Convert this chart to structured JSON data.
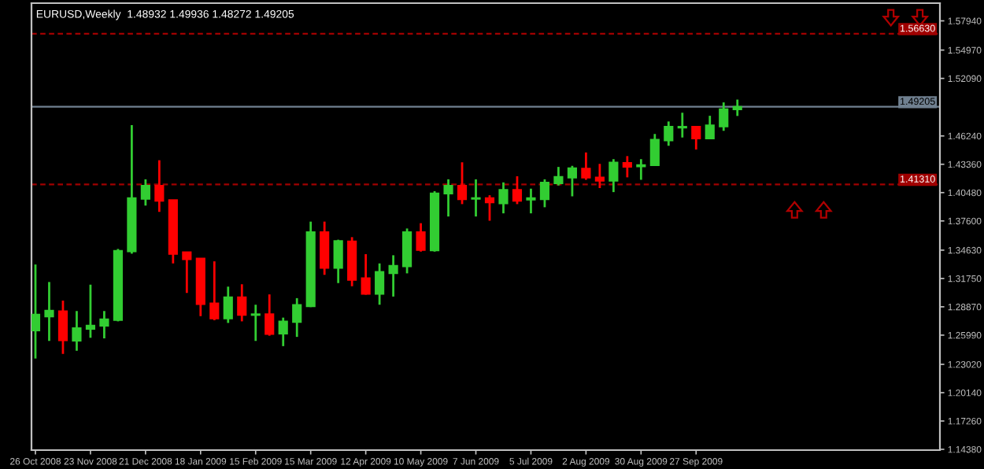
{
  "chart_data": {
    "type": "candlestick",
    "title": "EURUSD,Weekly  1.48932 1.49936 1.48272 1.49205",
    "x": [
      "2008-10-26",
      "2008-11-02",
      "2008-11-09",
      "2008-11-16",
      "2008-11-23",
      "2008-11-30",
      "2008-12-07",
      "2008-12-14",
      "2008-12-21",
      "2008-12-28",
      "2009-01-04",
      "2009-01-11",
      "2009-01-18",
      "2009-01-25",
      "2009-02-01",
      "2009-02-08",
      "2009-02-15",
      "2009-02-22",
      "2009-03-01",
      "2009-03-08",
      "2009-03-15",
      "2009-03-22",
      "2009-03-29",
      "2009-04-05",
      "2009-04-12",
      "2009-04-19",
      "2009-04-26",
      "2009-05-03",
      "2009-05-10",
      "2009-05-17",
      "2009-05-24",
      "2009-05-31",
      "2009-06-07",
      "2009-06-14",
      "2009-06-21",
      "2009-06-28",
      "2009-07-05",
      "2009-07-12",
      "2009-07-19",
      "2009-07-26",
      "2009-08-02",
      "2009-08-09",
      "2009-08-16",
      "2009-08-23",
      "2009-08-30",
      "2009-09-06",
      "2009-09-13",
      "2009-09-20",
      "2009-09-27",
      "2009-10-04",
      "2009-10-11",
      "2009-10-18"
    ],
    "ohlc": [
      [
        1.2645,
        1.3317,
        1.2361,
        1.2809
      ],
      [
        1.2786,
        1.3139,
        1.254,
        1.2849
      ],
      [
        1.2844,
        1.295,
        1.2408,
        1.2545
      ],
      [
        1.254,
        1.2844,
        1.244,
        1.2671
      ],
      [
        1.266,
        1.3112,
        1.2572,
        1.2698
      ],
      [
        1.2692,
        1.2844,
        1.2566,
        1.2761
      ],
      [
        1.275,
        1.3475,
        1.2739,
        1.3458
      ],
      [
        1.3448,
        1.4734,
        1.3427,
        1.3994
      ],
      [
        1.3983,
        1.4183,
        1.3916,
        1.412
      ],
      [
        1.412,
        1.4377,
        1.3852,
        1.3963
      ],
      [
        1.3974,
        1.3974,
        1.3328,
        1.3422
      ],
      [
        1.3443,
        1.3443,
        1.3028,
        1.3369
      ],
      [
        1.3379,
        1.3379,
        1.2792,
        1.2912
      ],
      [
        1.2923,
        1.3349,
        1.275,
        1.2766
      ],
      [
        1.2766,
        1.3092,
        1.2723,
        1.2986
      ],
      [
        1.2986,
        1.3116,
        1.2739,
        1.2802
      ],
      [
        1.2802,
        1.2908,
        1.254,
        1.2813
      ],
      [
        1.2813,
        1.3013,
        1.2593,
        1.2608
      ],
      [
        1.2613,
        1.2777,
        1.2487,
        1.2739
      ],
      [
        1.273,
        1.2975,
        1.2581,
        1.2908
      ],
      [
        1.2891,
        1.3753,
        1.2884,
        1.3647
      ],
      [
        1.3647,
        1.3753,
        1.3212,
        1.3281
      ],
      [
        1.3281,
        1.3569,
        1.3128,
        1.3557
      ],
      [
        1.3553,
        1.3595,
        1.3096,
        1.3159
      ],
      [
        1.318,
        1.3422,
        1.301,
        1.3017
      ],
      [
        1.3017,
        1.3328,
        1.2908,
        1.3243
      ],
      [
        1.3227,
        1.3411,
        1.2991,
        1.3306
      ],
      [
        1.3296,
        1.3683,
        1.3227,
        1.3647
      ],
      [
        1.3647,
        1.3737,
        1.3448,
        1.3463
      ],
      [
        1.3458,
        1.4062,
        1.3448,
        1.4041
      ],
      [
        1.4036,
        1.4183,
        1.3805,
        1.412
      ],
      [
        1.412,
        1.4356,
        1.3931,
        1.3978
      ],
      [
        1.3983,
        1.4183,
        1.3805,
        1.3994
      ],
      [
        1.3994,
        1.4021,
        1.3762,
        1.3947
      ],
      [
        1.3936,
        1.4152,
        1.3837,
        1.4077
      ],
      [
        1.4077,
        1.4214,
        1.3931,
        1.3963
      ],
      [
        1.3974,
        1.4088,
        1.3837,
        1.3994
      ],
      [
        1.3978,
        1.4183,
        1.3899,
        1.4152
      ],
      [
        1.414,
        1.4309,
        1.412,
        1.421
      ],
      [
        1.4199,
        1.432,
        1.401,
        1.4298
      ],
      [
        1.4293,
        1.4456,
        1.4178,
        1.4199
      ],
      [
        1.4203,
        1.434,
        1.4094,
        1.4167
      ],
      [
        1.4167,
        1.4388,
        1.4053,
        1.4356
      ],
      [
        1.4351,
        1.4419,
        1.4203,
        1.4309
      ],
      [
        1.4313,
        1.4388,
        1.4178,
        1.433
      ],
      [
        1.4325,
        1.4644,
        1.4318,
        1.4588
      ],
      [
        1.4576,
        1.4771,
        1.4524,
        1.4719
      ],
      [
        1.4707,
        1.486,
        1.4608,
        1.4719
      ],
      [
        1.4719,
        1.4726,
        1.4486,
        1.4597
      ],
      [
        1.4597,
        1.4829,
        1.459,
        1.4734
      ],
      [
        1.4719,
        1.4965,
        1.4676,
        1.4897
      ],
      [
        1.48932,
        1.49936,
        1.48272,
        1.49205
      ]
    ],
    "colors": [
      "#32cd32",
      "#32cd32",
      "#ff0000",
      "#32cd32",
      "#32cd32",
      "#32cd32",
      "#32cd32",
      "#32cd32",
      "#32cd32",
      "#ff0000",
      "#ff0000",
      "#ff0000",
      "#ff0000",
      "#ff0000",
      "#32cd32",
      "#ff0000",
      "#32cd32",
      "#ff0000",
      "#32cd32",
      "#32cd32",
      "#32cd32",
      "#ff0000",
      "#32cd32",
      "#ff0000",
      "#ff0000",
      "#32cd32",
      "#32cd32",
      "#32cd32",
      "#ff0000",
      "#32cd32",
      "#32cd32",
      "#ff0000",
      "#32cd32",
      "#ff0000",
      "#32cd32",
      "#ff0000",
      "#32cd32",
      "#32cd32",
      "#32cd32",
      "#32cd32",
      "#ff0000",
      "#ff0000",
      "#32cd32",
      "#ff0000",
      "#32cd32",
      "#32cd32",
      "#32cd32",
      "#32cd32",
      "#ff0000",
      "#32cd32",
      "#32cd32",
      "#32cd32"
    ],
    "xlim": [
      "2008-10-24",
      "2010-01-29"
    ],
    "xticks": [
      {
        "value": "2008-10-26",
        "label": "26 Oct 2008"
      },
      {
        "value": "2008-11-23",
        "label": "23 Nov 2008"
      },
      {
        "value": "2008-12-21",
        "label": "21 Dec 2008"
      },
      {
        "value": "2009-01-18",
        "label": "18 Jan 2009"
      },
      {
        "value": "2009-02-15",
        "label": "15 Feb 2009"
      },
      {
        "value": "2009-03-15",
        "label": "15 Mar 2009"
      },
      {
        "value": "2009-04-12",
        "label": "12 Apr 2009"
      },
      {
        "value": "2009-05-10",
        "label": "10 May 2009"
      },
      {
        "value": "2009-06-07",
        "label": "7 Jun 2009"
      },
      {
        "value": "2009-07-05",
        "label": "5 Jul 2009"
      },
      {
        "value": "2009-08-02",
        "label": "2 Aug 2009"
      },
      {
        "value": "2009-08-30",
        "label": "30 Aug 2009"
      },
      {
        "value": "2009-09-27",
        "label": "27 Sep 2009"
      }
    ],
    "ylim": [
      1.143,
      1.5974
    ],
    "yticks": [
      {
        "value": 1.1438,
        "label": "1.14380"
      },
      {
        "value": 1.1726,
        "label": "1.17260"
      },
      {
        "value": 1.2014,
        "label": "1.20140"
      },
      {
        "value": 1.2302,
        "label": "1.23020"
      },
      {
        "value": 1.2599,
        "label": "1.25990"
      },
      {
        "value": 1.2887,
        "label": "1.28870"
      },
      {
        "value": 1.3175,
        "label": "1.31750"
      },
      {
        "value": 1.3463,
        "label": "1.34630"
      },
      {
        "value": 1.376,
        "label": "1.37600"
      },
      {
        "value": 1.4048,
        "label": "1.40480"
      },
      {
        "value": 1.4336,
        "label": "1.43360"
      },
      {
        "value": 1.4624,
        "label": "1.46240"
      },
      {
        "value": 1.5209,
        "label": "1.52090"
      },
      {
        "value": 1.5497,
        "label": "1.54970"
      },
      {
        "value": 1.5794,
        "label": "1.57940"
      }
    ],
    "ref_lines": [
      {
        "axis": "y",
        "value": 1.5663,
        "label": "1.56630",
        "color": "#a00000",
        "line_style": "dashed"
      },
      {
        "axis": "y",
        "value": 1.49205,
        "label": "1.49205",
        "color": "#708090",
        "line_style": "solid"
      },
      {
        "axis": "y",
        "value": 1.4131,
        "label": "1.41310",
        "color": "#a00000",
        "line_style": "dashed"
      }
    ]
  }
}
